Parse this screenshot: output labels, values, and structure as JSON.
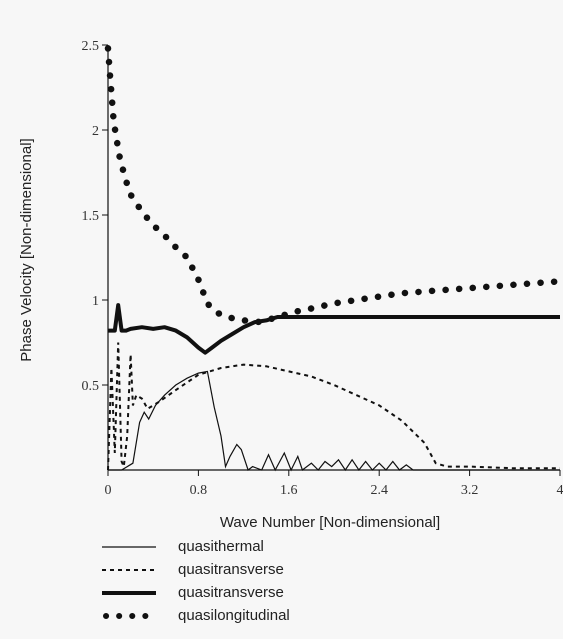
{
  "chart_data": {
    "type": "line",
    "title": "",
    "xlabel": "Wave Number [Non-dimensional]",
    "ylabel": "Phase Velocity [Non-dimensional]",
    "xlim": [
      0,
      4
    ],
    "ylim": [
      0,
      2.5
    ],
    "x_ticks": [
      "0",
      "0.8",
      "1.6",
      "2.4",
      "3.2",
      "4"
    ],
    "y_ticks": [
      "0.5",
      "1",
      "1.5",
      "2",
      "2.5"
    ],
    "grid": false,
    "legend_position": "bottom-left",
    "series": [
      {
        "name": "quasithermal",
        "style": "thin-solid",
        "x": [
          0,
          0.12,
          0.22,
          0.28,
          0.32,
          0.36,
          0.42,
          0.5,
          0.6,
          0.7,
          0.8,
          0.88,
          0.94,
          1.0,
          1.04,
          1.08,
          1.14,
          1.18,
          1.24,
          1.28,
          1.36,
          1.42,
          1.48,
          1.56,
          1.62,
          1.68,
          1.72,
          1.8,
          1.86,
          1.92,
          1.98,
          2.04,
          2.1,
          2.16,
          2.22,
          2.28,
          2.34,
          2.4,
          2.46,
          2.52,
          2.58,
          2.64,
          2.7,
          2.76,
          4.0
        ],
        "y": [
          0,
          0,
          0.04,
          0.28,
          0.34,
          0.3,
          0.38,
          0.44,
          0.5,
          0.54,
          0.57,
          0.58,
          0.37,
          0.2,
          0.02,
          0.08,
          0.15,
          0.12,
          0.0,
          0.02,
          0.0,
          0.09,
          0.0,
          0.1,
          0.0,
          0.08,
          0.0,
          0.04,
          0.0,
          0.05,
          0.02,
          0.06,
          0.0,
          0.06,
          0.0,
          0.05,
          0.0,
          0.04,
          0.0,
          0.05,
          0.0,
          0.03,
          0.0,
          0.0,
          0.0
        ]
      },
      {
        "name": "quasitransverse",
        "style": "thin-dashed",
        "x": [
          0,
          0.03,
          0.06,
          0.09,
          0.12,
          0.14,
          0.17,
          0.2,
          0.22,
          0.25,
          0.3,
          0.35,
          0.45,
          0.6,
          0.8,
          1.0,
          1.2,
          1.4,
          1.6,
          1.8,
          2.0,
          2.2,
          2.4,
          2.6,
          2.8,
          2.9,
          3.0,
          3.2,
          3.6,
          4.0
        ],
        "y": [
          0,
          0.6,
          0.1,
          0.75,
          0.05,
          0.02,
          0.2,
          0.68,
          0.38,
          0.44,
          0.42,
          0.36,
          0.4,
          0.47,
          0.56,
          0.6,
          0.62,
          0.61,
          0.58,
          0.55,
          0.5,
          0.44,
          0.38,
          0.29,
          0.16,
          0.04,
          0.02,
          0.02,
          0.01,
          0.01
        ]
      },
      {
        "name": "quasitransverse",
        "style": "thick-solid",
        "x": [
          0,
          0.06,
          0.09,
          0.12,
          0.16,
          0.2,
          0.3,
          0.4,
          0.5,
          0.6,
          0.7,
          0.8,
          0.86,
          0.92,
          1.0,
          1.1,
          1.2,
          1.3,
          1.4,
          1.5,
          1.6,
          2.0,
          2.4,
          2.8,
          3.2,
          3.6,
          4.0
        ],
        "y": [
          0.82,
          0.82,
          0.97,
          0.82,
          0.82,
          0.83,
          0.84,
          0.83,
          0.84,
          0.82,
          0.78,
          0.72,
          0.69,
          0.72,
          0.76,
          0.8,
          0.84,
          0.87,
          0.88,
          0.9,
          0.9,
          0.9,
          0.9,
          0.9,
          0.9,
          0.9,
          0.9
        ]
      },
      {
        "name": "quasilongitudinal",
        "style": "dotted-heavy",
        "x": [
          0,
          0.02,
          0.05,
          0.1,
          0.15,
          0.2,
          0.3,
          0.4,
          0.5,
          0.6,
          0.7,
          0.8,
          0.88,
          0.95,
          1.05,
          1.2,
          1.35,
          1.5,
          1.65,
          1.8,
          2.0,
          2.2,
          2.4,
          2.6,
          2.8,
          3.0,
          3.2,
          3.4,
          3.6,
          3.8,
          4.0
        ],
        "y": [
          2.48,
          2.3,
          2.05,
          1.85,
          1.72,
          1.62,
          1.52,
          1.44,
          1.38,
          1.31,
          1.25,
          1.12,
          0.98,
          0.93,
          0.9,
          0.88,
          0.87,
          0.9,
          0.93,
          0.95,
          0.98,
          1.0,
          1.02,
          1.04,
          1.05,
          1.06,
          1.07,
          1.08,
          1.09,
          1.1,
          1.11
        ]
      }
    ]
  },
  "legend": {
    "items": [
      {
        "label": "quasithermal",
        "style": "thin-solid"
      },
      {
        "label": "quasitransverse",
        "style": "thin-dashed"
      },
      {
        "label": "quasitransverse",
        "style": "thick-solid"
      },
      {
        "label": "quasilongitudinal",
        "style": "dotted-heavy"
      }
    ]
  }
}
